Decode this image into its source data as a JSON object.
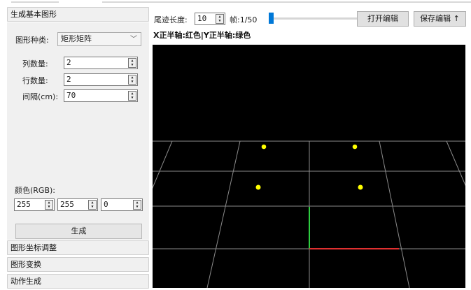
{
  "left": {
    "generate_header": "生成基本图形",
    "shape_type_label": "图形种类:",
    "shape_type_value": "矩形矩阵",
    "columns_label": "列数量:",
    "columns_value": "2",
    "rows_label": "行数量:",
    "rows_value": "2",
    "spacing_label": "间隔(cm):",
    "spacing_value": "70",
    "color_label": "颜色(RGB):",
    "color_r": "255",
    "color_g": "255",
    "color_b": "0",
    "generate_button": "生成",
    "coord_adjust_header": "图形坐标调整",
    "transform_header": "图形变换",
    "action_header": "动作生成"
  },
  "toolbar": {
    "trail_label": "尾迹长度:",
    "trail_value": "10",
    "frame_text": "帧:1/50",
    "frame_current": 1,
    "frame_total": 50,
    "open_editor": "打开编辑",
    "save_editor": "保存编辑",
    "save_icon": "arrow-up-icon",
    "accent_color": "#0078d7"
  },
  "viewport": {
    "axis_caption": "X正半轴:红色|Y正半轴:绿色",
    "background": "#000000",
    "grid_color": "#8a8a8a",
    "x_axis_color": "#e03030",
    "y_axis_color": "#2ecc40",
    "point_color": "#ffff00"
  }
}
